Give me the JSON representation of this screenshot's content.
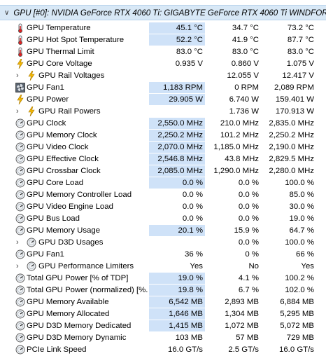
{
  "header": {
    "title": "GPU [#0]: NVIDIA GeForce RTX 4060 Ti: GIGABYTE GeForce RTX 4060 Ti WINDFOR..."
  },
  "rows": [
    {
      "label": "GPU Temperature",
      "icon": "thermometer-icon",
      "cur": "45.1 °C",
      "min": "34.7 °C",
      "max": "73.2 °C",
      "hl": true
    },
    {
      "label": "GPU Hot Spot Temperature",
      "icon": "thermometer-icon",
      "cur": "52.2 °C",
      "min": "41.9 °C",
      "max": "87.7 °C",
      "hl": true
    },
    {
      "label": "GPU Thermal Limit",
      "icon": "thermometer-icon",
      "cur": "83.0 °C",
      "min": "83.0 °C",
      "max": "83.0 °C"
    },
    {
      "label": "GPU Core Voltage",
      "icon": "lightning-icon",
      "cur": "0.935 V",
      "min": "0.860 V",
      "max": "1.075 V"
    },
    {
      "label": "GPU Rail Voltages",
      "icon": "lightning-icon",
      "sub": true,
      "expand": true,
      "cur": "",
      "min": "12.055 V",
      "max": "12.417 V"
    },
    {
      "label": "GPU Fan1",
      "icon": "fan-icon",
      "cur": "1,183 RPM",
      "min": "0 RPM",
      "max": "2,089 RPM",
      "hl": true
    },
    {
      "label": "GPU Power",
      "icon": "lightning-icon",
      "cur": "29.905 W",
      "min": "6.740 W",
      "max": "159.401 W",
      "hl": true
    },
    {
      "label": "GPU Rail Powers",
      "icon": "lightning-icon",
      "sub": true,
      "expand": true,
      "cur": "",
      "min": "1.736 W",
      "max": "170.913 W"
    },
    {
      "label": "GPU Clock",
      "icon": "gauge-icon",
      "cur": "2,550.0 MHz",
      "min": "210.0 MHz",
      "max": "2,835.0 MHz",
      "hl": true
    },
    {
      "label": "GPU Memory Clock",
      "icon": "gauge-icon",
      "cur": "2,250.2 MHz",
      "min": "101.2 MHz",
      "max": "2,250.2 MHz",
      "hl": true
    },
    {
      "label": "GPU Video Clock",
      "icon": "gauge-icon",
      "cur": "2,070.0 MHz",
      "min": "1,185.0 MHz",
      "max": "2,190.0 MHz",
      "hl": true
    },
    {
      "label": "GPU Effective Clock",
      "icon": "gauge-icon",
      "cur": "2,546.8 MHz",
      "min": "43.8 MHz",
      "max": "2,829.5 MHz",
      "hl": true
    },
    {
      "label": "GPU Crossbar Clock",
      "icon": "gauge-icon",
      "cur": "2,085.0 MHz",
      "min": "1,290.0 MHz",
      "max": "2,280.0 MHz",
      "hl": true
    },
    {
      "label": "GPU Core Load",
      "icon": "gauge-icon",
      "cur": "0.0 %",
      "min": "0.0 %",
      "max": "100.0 %",
      "hl": true
    },
    {
      "label": "GPU Memory Controller Load",
      "icon": "gauge-icon",
      "cur": "0.0 %",
      "min": "0.0 %",
      "max": "85.0 %"
    },
    {
      "label": "GPU Video Engine Load",
      "icon": "gauge-icon",
      "cur": "0.0 %",
      "min": "0.0 %",
      "max": "30.0 %"
    },
    {
      "label": "GPU Bus Load",
      "icon": "gauge-icon",
      "cur": "0.0 %",
      "min": "0.0 %",
      "max": "19.0 %"
    },
    {
      "label": "GPU Memory Usage",
      "icon": "gauge-icon",
      "cur": "20.1 %",
      "min": "15.9 %",
      "max": "64.7 %",
      "hl": true
    },
    {
      "label": "GPU D3D Usages",
      "icon": "gauge-icon",
      "sub": true,
      "expand": true,
      "cur": "",
      "min": "0.0 %",
      "max": "100.0 %"
    },
    {
      "label": "GPU Fan1",
      "icon": "gauge-icon",
      "cur": "36 %",
      "min": "0 %",
      "max": "66 %"
    },
    {
      "label": "GPU Performance Limiters",
      "icon": "gauge-icon",
      "sub": true,
      "expand": true,
      "cur": "Yes",
      "min": "No",
      "max": "Yes"
    },
    {
      "label": "Total GPU Power [% of TDP]",
      "icon": "gauge-icon",
      "cur": "19.0 %",
      "min": "4.1 %",
      "max": "100.2 %",
      "hl": true
    },
    {
      "label": "Total GPU Power (normalized) [%...",
      "icon": "gauge-icon",
      "cur": "19.8 %",
      "min": "6.7 %",
      "max": "102.0 %",
      "hl": true
    },
    {
      "label": "GPU Memory Available",
      "icon": "gauge-icon",
      "cur": "6,542 MB",
      "min": "2,893 MB",
      "max": "6,884 MB",
      "hl": true
    },
    {
      "label": "GPU Memory Allocated",
      "icon": "gauge-icon",
      "cur": "1,646 MB",
      "min": "1,304 MB",
      "max": "5,295 MB",
      "hl": true
    },
    {
      "label": "GPU D3D Memory Dedicated",
      "icon": "gauge-icon",
      "cur": "1,415 MB",
      "min": "1,072 MB",
      "max": "5,072 MB",
      "hl": true
    },
    {
      "label": "GPU D3D Memory Dynamic",
      "icon": "gauge-icon",
      "cur": "103 MB",
      "min": "57 MB",
      "max": "729 MB"
    },
    {
      "label": "PCIe Link Speed",
      "icon": "gauge-icon",
      "cur": "16.0 GT/s",
      "min": "2.5 GT/s",
      "max": "16.0 GT/s"
    }
  ]
}
